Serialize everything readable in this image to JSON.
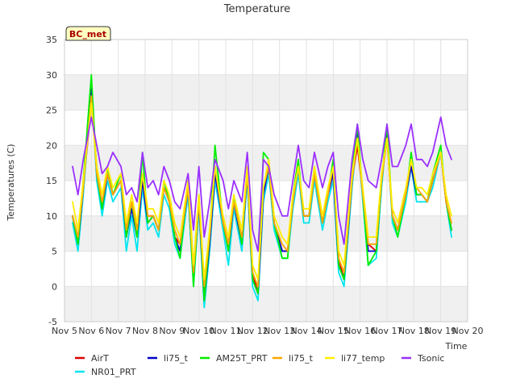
{
  "chart_data": {
    "type": "line",
    "title": "Temperature",
    "xlabel": "Time",
    "ylabel": "Temperatures (C)",
    "annotation": "BC_met",
    "ylim": [
      -5,
      35
    ],
    "xlim": [
      5,
      20
    ],
    "grid": true,
    "legend_position": "bottom",
    "yticks": [
      -5,
      0,
      5,
      10,
      15,
      20,
      25,
      30,
      35
    ],
    "xticks": [
      {
        "value": 5,
        "label": "Nov 5"
      },
      {
        "value": 6,
        "label": "Nov 6"
      },
      {
        "value": 7,
        "label": "Nov 7"
      },
      {
        "value": 8,
        "label": "Nov 8"
      },
      {
        "value": 9,
        "label": "Nov 9"
      },
      {
        "value": 10,
        "label": "Nov 10"
      },
      {
        "value": 11,
        "label": "Nov 11"
      },
      {
        "value": 12,
        "label": "Nov 12"
      },
      {
        "value": 13,
        "label": "Nov 13"
      },
      {
        "value": 14,
        "label": "Nov 14"
      },
      {
        "value": 15,
        "label": "Nov 15"
      },
      {
        "value": 16,
        "label": "Nov 16"
      },
      {
        "value": 17,
        "label": "Nov 17"
      },
      {
        "value": 18,
        "label": "Nov 18"
      },
      {
        "value": 19,
        "label": "Nov 19"
      },
      {
        "value": 20,
        "label": "Nov 20"
      }
    ],
    "series": [
      {
        "name": "AirT",
        "color": "#dd0000",
        "x": [
          5.3,
          5.5,
          5.7,
          6.0,
          6.2,
          6.4,
          6.6,
          6.8,
          7.1,
          7.3,
          7.5,
          7.7,
          7.9,
          8.1,
          8.3,
          8.5,
          8.7,
          8.9,
          9.1,
          9.3,
          9.6,
          9.8,
          10.0,
          10.2,
          10.4,
          10.6,
          10.9,
          11.1,
          11.3,
          11.6,
          11.8,
          12.0,
          12.2,
          12.4,
          12.6,
          12.8,
          13.1,
          13.3,
          13.5,
          13.7,
          13.9,
          14.1,
          14.3,
          14.6,
          14.8,
          15.0,
          15.2,
          15.4,
          15.7,
          15.9,
          16.1,
          16.3,
          16.6,
          16.8,
          17.0,
          17.2,
          17.4,
          17.7,
          17.9,
          18.1,
          18.3,
          18.5,
          18.7,
          19.0,
          19.2,
          19.4
        ],
        "y": [
          10,
          6,
          14,
          26,
          17,
          11,
          16,
          13,
          15,
          8,
          12,
          8,
          15,
          10,
          10,
          8,
          14,
          12,
          7,
          6,
          14,
          2,
          12,
          -1,
          7,
          16,
          9,
          6,
          12,
          6,
          16,
          2,
          -1,
          13,
          17,
          9,
          5,
          5,
          12,
          17,
          10,
          10,
          16,
          9,
          13,
          16,
          4,
          1,
          15,
          20,
          13,
          6,
          5,
          15,
          21,
          10,
          8,
          13,
          17,
          13,
          13,
          12,
          15,
          19,
          12,
          8
        ]
      },
      {
        "name": "NR01_PRT",
        "color": "#00e5ee",
        "x": [
          5.3,
          5.5,
          5.7,
          6.0,
          6.2,
          6.4,
          6.6,
          6.8,
          7.1,
          7.3,
          7.5,
          7.7,
          7.9,
          8.1,
          8.3,
          8.5,
          8.7,
          8.9,
          9.1,
          9.3,
          9.6,
          9.8,
          10.0,
          10.2,
          10.4,
          10.6,
          10.9,
          11.1,
          11.3,
          11.6,
          11.8,
          12.0,
          12.2,
          12.4,
          12.6,
          12.8,
          13.1,
          13.3,
          13.5,
          13.7,
          13.9,
          14.1,
          14.3,
          14.6,
          14.8,
          15.0,
          15.2,
          15.4,
          15.7,
          15.9,
          16.1,
          16.3,
          16.6,
          16.8,
          17.0,
          17.2,
          17.4,
          17.7,
          17.9,
          18.1,
          18.3,
          18.5,
          18.7,
          19.0,
          19.2,
          19.4
        ],
        "y": [
          9,
          5,
          13,
          28,
          15,
          10,
          15,
          12,
          14,
          5,
          10,
          5,
          14,
          8,
          9,
          7,
          13,
          11,
          6,
          4,
          13,
          0,
          11,
          -3,
          5,
          15,
          8,
          3,
          11,
          5,
          15,
          0,
          -2,
          12,
          16,
          8,
          4,
          4,
          11,
          16,
          9,
          9,
          15,
          8,
          12,
          15,
          2,
          0,
          14,
          22,
          12,
          3,
          4,
          14,
          22,
          9,
          7,
          12,
          17,
          12,
          12,
          12,
          14,
          19,
          12,
          7
        ]
      },
      {
        "name": "li75_t",
        "color": "#0000cc",
        "x": [
          5.3,
          5.5,
          5.7,
          6.0,
          6.2,
          6.4,
          6.6,
          6.8,
          7.1,
          7.3,
          7.5,
          7.7,
          7.9,
          8.1,
          8.3,
          8.5,
          8.7,
          8.9,
          9.1,
          9.3,
          9.6,
          9.8,
          10.0,
          10.2,
          10.4,
          10.6,
          10.9,
          11.1,
          11.3,
          11.6,
          11.8,
          12.0,
          12.2,
          12.4,
          12.6,
          12.8,
          13.1,
          13.3,
          13.5,
          13.7,
          13.9,
          14.1,
          14.3,
          14.6,
          14.8,
          15.0,
          15.2,
          15.4,
          15.7,
          15.9,
          16.1,
          16.3,
          16.6,
          16.8,
          17.0,
          17.2,
          17.4,
          17.7,
          17.9,
          18.1,
          18.3,
          18.5,
          18.7,
          19.0,
          19.2,
          19.4
        ],
        "y": [
          10,
          6,
          14,
          28,
          16,
          11,
          16,
          13,
          15,
          7,
          11,
          7,
          15,
          9,
          10,
          8,
          14,
          12,
          7,
          5,
          14,
          1,
          12,
          -2,
          6,
          16,
          9,
          5,
          12,
          6,
          16,
          1,
          -1,
          13,
          17,
          9,
          5,
          5,
          12,
          17,
          10,
          10,
          16,
          9,
          13,
          16,
          3,
          1,
          15,
          22,
          13,
          5,
          5,
          15,
          22,
          10,
          8,
          13,
          17,
          13,
          13,
          12,
          15,
          19,
          12,
          8
        ]
      },
      {
        "name": "AM25T_PRT",
        "color": "#00ee00",
        "x": [
          5.3,
          5.5,
          5.7,
          6.0,
          6.2,
          6.4,
          6.6,
          6.8,
          7.1,
          7.3,
          7.5,
          7.7,
          7.9,
          8.1,
          8.3,
          8.5,
          8.7,
          8.9,
          9.1,
          9.3,
          9.6,
          9.8,
          10.0,
          10.2,
          10.4,
          10.6,
          10.9,
          11.1,
          11.3,
          11.6,
          11.8,
          12.0,
          12.2,
          12.4,
          12.6,
          12.8,
          13.1,
          13.3,
          13.5,
          13.7,
          13.9,
          14.1,
          14.3,
          14.6,
          14.8,
          15.0,
          15.2,
          15.4,
          15.7,
          15.9,
          16.1,
          16.3,
          16.6,
          16.8,
          17.0,
          17.2,
          17.4,
          17.7,
          17.9,
          18.1,
          18.3,
          18.5,
          18.7,
          19.0,
          19.2,
          19.4
        ],
        "y": [
          10,
          6,
          15,
          30,
          16,
          11,
          17,
          13,
          16,
          7,
          12,
          7,
          19,
          9,
          10,
          8,
          15,
          12,
          7,
          4,
          15,
          0,
          13,
          -2,
          7,
          20,
          9,
          5,
          13,
          6,
          17,
          1,
          -1,
          19,
          18,
          9,
          4,
          4,
          13,
          18,
          10,
          10,
          17,
          9,
          13,
          18,
          3,
          1,
          16,
          23,
          13,
          3,
          5,
          15,
          23,
          10,
          7,
          13,
          19,
          13,
          13,
          12,
          16,
          20,
          12,
          8
        ]
      },
      {
        "name": "li75_t",
        "color": "#ffa500",
        "x": [
          5.3,
          5.5,
          5.7,
          6.0,
          6.2,
          6.4,
          6.6,
          6.8,
          7.1,
          7.3,
          7.5,
          7.7,
          7.9,
          8.1,
          8.3,
          8.5,
          8.7,
          8.9,
          9.1,
          9.3,
          9.6,
          9.8,
          10.0,
          10.2,
          10.4,
          10.6,
          10.9,
          11.1,
          11.3,
          11.6,
          11.8,
          12.0,
          12.2,
          12.4,
          12.6,
          12.8,
          13.1,
          13.3,
          13.5,
          13.7,
          13.9,
          14.1,
          14.3,
          14.6,
          14.8,
          15.0,
          15.2,
          15.4,
          15.7,
          15.9,
          16.1,
          16.3,
          16.6,
          16.8,
          17.0,
          17.2,
          17.4,
          17.7,
          17.9,
          18.1,
          18.3,
          18.5,
          18.7,
          19.0,
          19.2,
          19.4
        ],
        "y": [
          10,
          7,
          14,
          27,
          16,
          12,
          16,
          13,
          15,
          8,
          12,
          8,
          16,
          10,
          10,
          8,
          14,
          12,
          8,
          6,
          14,
          2,
          12,
          0,
          7,
          17,
          9,
          6,
          12,
          7,
          16,
          2,
          0,
          14,
          17,
          9,
          6,
          5,
          12,
          17,
          10,
          10,
          16,
          9,
          13,
          17,
          4,
          2,
          15,
          21,
          13,
          6,
          6,
          15,
          21,
          10,
          8,
          13,
          18,
          14,
          13,
          12,
          15,
          19,
          12,
          9
        ]
      },
      {
        "name": "li77_temp",
        "color": "#ffee00",
        "x": [
          5.3,
          5.5,
          5.7,
          6.0,
          6.2,
          6.4,
          6.6,
          6.8,
          7.1,
          7.3,
          7.5,
          7.7,
          7.9,
          8.1,
          8.3,
          8.5,
          8.7,
          8.9,
          9.1,
          9.3,
          9.6,
          9.8,
          10.0,
          10.2,
          10.4,
          10.6,
          10.9,
          11.1,
          11.3,
          11.6,
          11.8,
          12.0,
          12.2,
          12.4,
          12.6,
          12.8,
          13.1,
          13.3,
          13.5,
          13.7,
          13.9,
          14.1,
          14.3,
          14.6,
          14.8,
          15.0,
          15.2,
          15.4,
          15.7,
          15.9,
          16.1,
          16.3,
          16.6,
          16.8,
          17.0,
          17.2,
          17.4,
          17.7,
          17.9,
          18.1,
          18.3,
          18.5,
          18.7,
          19.0,
          19.2,
          19.4
        ],
        "y": [
          12,
          8,
          15,
          26,
          17,
          13,
          17,
          14,
          16,
          9,
          13,
          9,
          16,
          11,
          11,
          9,
          15,
          13,
          9,
          7,
          15,
          3,
          13,
          1,
          8,
          17,
          10,
          7,
          13,
          8,
          17,
          3,
          1,
          14,
          18,
          10,
          7,
          6,
          13,
          17,
          11,
          11,
          17,
          10,
          14,
          17,
          5,
          3,
          16,
          21,
          14,
          7,
          7,
          16,
          21,
          11,
          9,
          14,
          18,
          14,
          14,
          13,
          16,
          19,
          13,
          10
        ]
      },
      {
        "name": "Tsonic",
        "color": "#9b30ff",
        "x": [
          5.3,
          5.5,
          5.7,
          6.0,
          6.2,
          6.4,
          6.6,
          6.8,
          7.1,
          7.3,
          7.5,
          7.7,
          7.9,
          8.1,
          8.3,
          8.5,
          8.7,
          8.9,
          9.1,
          9.3,
          9.6,
          9.8,
          10.0,
          10.2,
          10.4,
          10.6,
          10.9,
          11.1,
          11.3,
          11.6,
          11.8,
          12.0,
          12.2,
          12.4,
          12.6,
          12.8,
          13.1,
          13.3,
          13.5,
          13.7,
          13.9,
          14.1,
          14.3,
          14.6,
          14.8,
          15.0,
          15.2,
          15.4,
          15.7,
          15.9,
          16.1,
          16.3,
          16.6,
          16.8,
          17.0,
          17.2,
          17.4,
          17.7,
          17.9,
          18.1,
          18.3,
          18.5,
          18.7,
          19.0,
          19.2,
          19.4
        ],
        "y": [
          17,
          13,
          18,
          24,
          20,
          16,
          17,
          19,
          17,
          13,
          14,
          12,
          19,
          14,
          15,
          13,
          17,
          15,
          12,
          11,
          16,
          8,
          17,
          7,
          12,
          18,
          15,
          11,
          15,
          12,
          19,
          8,
          5,
          18,
          17,
          13,
          10,
          10,
          15,
          20,
          15,
          14,
          19,
          14,
          17,
          19,
          10,
          6,
          18,
          23,
          18,
          15,
          14,
          18,
          23,
          17,
          17,
          20,
          23,
          18,
          18,
          17,
          19,
          24,
          20,
          18
        ]
      }
    ]
  }
}
